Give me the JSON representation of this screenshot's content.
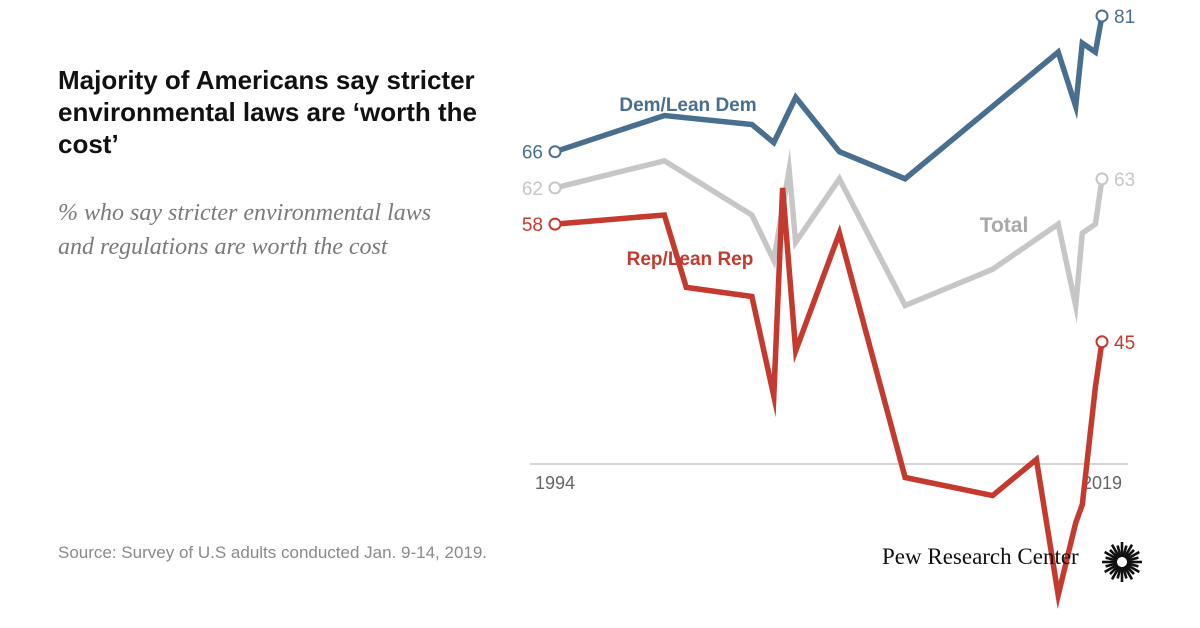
{
  "header": {
    "title": "Majority of Americans say stricter environmental laws are ‘worth the cost’",
    "subtitle": "% who say stricter environmental laws and regulations are worth the cost"
  },
  "footer": {
    "source": "Source: Survey of U.S adults conducted Jan. 9-14, 2019.",
    "logo_text": "Pew Research Center"
  },
  "colors": {
    "dem": "#4a6f8e",
    "total": "#c6c6c6",
    "rep": "#c43a2e",
    "axis": "#bdbdbd"
  },
  "chart_data": {
    "type": "line",
    "title": "",
    "xlabel": "",
    "ylabel": "",
    "x_ticks": [
      "1994",
      "2019"
    ],
    "xlim": [
      1994,
      2019
    ],
    "grid": false,
    "legend": "direct labels",
    "series": [
      {
        "name": "Dem/Lean Dem",
        "color": "#4a6f8e",
        "x": [
          1994,
          1999,
          2003,
          2004,
          2005,
          2007,
          2010,
          2014,
          2017,
          2017.8,
          2018.1,
          2018.7,
          2019
        ],
        "y": [
          66,
          70,
          69,
          67,
          72,
          66,
          63,
          71,
          77,
          71,
          78,
          77,
          81
        ],
        "start_label": "66",
        "end_label": "81"
      },
      {
        "name": "Total",
        "color": "#c6c6c6",
        "x": [
          1994,
          1999,
          2003,
          2004,
          2004.7,
          2005,
          2007,
          2010,
          2014,
          2017,
          2017.8,
          2018.1,
          2018.7,
          2019
        ],
        "y": [
          62,
          65,
          59,
          54,
          64,
          56,
          63,
          49,
          53,
          58,
          49,
          57,
          58,
          63
        ],
        "start_label": "62",
        "end_label": "63"
      },
      {
        "name": "Rep/Lean Rep",
        "color": "#c43a2e",
        "x": [
          1994,
          1999,
          2000,
          2003,
          2004,
          2004.4,
          2005,
          2007,
          2010,
          2014,
          2016,
          2017,
          2017.8,
          2018.1,
          2018.7,
          2019
        ],
        "y": [
          58,
          59,
          51,
          50,
          39,
          62,
          44,
          57,
          30,
          28,
          32,
          17,
          25,
          27,
          40,
          45
        ],
        "start_label": "58",
        "end_label": "45"
      }
    ]
  }
}
